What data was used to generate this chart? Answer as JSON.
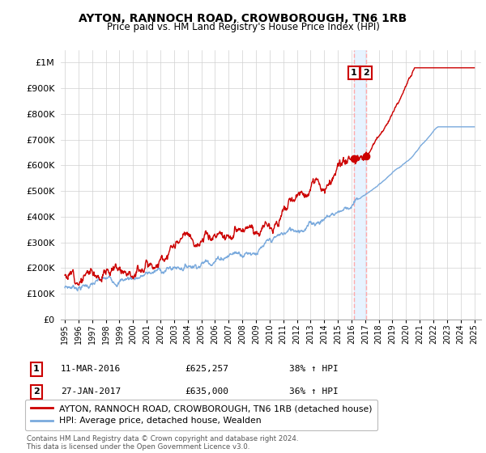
{
  "title": "AYTON, RANNOCH ROAD, CROWBOROUGH, TN6 1RB",
  "subtitle": "Price paid vs. HM Land Registry's House Price Index (HPI)",
  "legend_label_red": "AYTON, RANNOCH ROAD, CROWBOROUGH, TN6 1RB (detached house)",
  "legend_label_blue": "HPI: Average price, detached house, Wealden",
  "transaction1_date": "11-MAR-2016",
  "transaction1_price": "£625,257",
  "transaction1_hpi": "38% ↑ HPI",
  "transaction2_date": "27-JAN-2017",
  "transaction2_price": "£635,000",
  "transaction2_hpi": "36% ↑ HPI",
  "footer": "Contains HM Land Registry data © Crown copyright and database right 2024.\nThis data is licensed under the Open Government Licence v3.0.",
  "red_color": "#cc0000",
  "blue_color": "#7aaadd",
  "vline_color": "#ffaaaa",
  "vfill_color": "#ddeeff",
  "box_color": "#cc0000",
  "ylim": [
    0,
    1050000
  ],
  "yticks": [
    0,
    100000,
    200000,
    300000,
    400000,
    500000,
    600000,
    700000,
    800000,
    900000,
    1000000
  ],
  "ytick_labels": [
    "£0",
    "£100K",
    "£200K",
    "£300K",
    "£400K",
    "£500K",
    "£600K",
    "£700K",
    "£800K",
    "£900K",
    "£1M"
  ],
  "transaction1_year": 2016.18,
  "transaction2_year": 2017.07,
  "transaction1_price_val": 625257,
  "transaction2_price_val": 635000
}
